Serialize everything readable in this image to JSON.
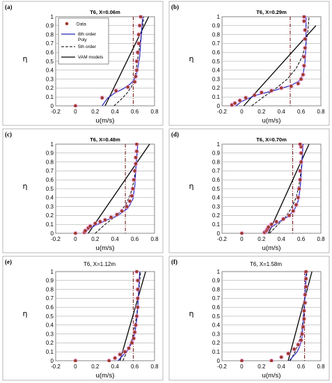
{
  "style": {
    "dots": "#a0392d",
    "dot_halo": "#f2a6ee",
    "order8": "#2626b8",
    "order5": "#000000",
    "vam": "#000000",
    "mean_line": "#7a1f1f"
  },
  "axis": {
    "xlabel": "u(m/s)",
    "ylabel": "η",
    "xticks": [
      "-0.2",
      "0",
      "0.2",
      "0.4",
      "0.6",
      "0.8"
    ],
    "yticks": [
      "0",
      "0.1",
      "0.2",
      "0.3",
      "0.4",
      "0.5",
      "0.6",
      "0.7",
      "0.8",
      "0.9",
      "1"
    ]
  },
  "legend": {
    "data": "Data",
    "order8_line1": "8th order",
    "order8_line2": "Poly",
    "order5": "5th order",
    "vam": "VAM models"
  },
  "chart_data": [
    {
      "type": "scatter",
      "letter": "(a)",
      "title": "T6, X=0.06m",
      "xlim": [
        -0.2,
        0.8
      ],
      "ylim": [
        0,
        1
      ],
      "grid": "horizontal",
      "data_points": [
        [
          0,
          0
        ],
        [
          0.27,
          0.09
        ],
        [
          0.41,
          0.17
        ],
        [
          0.53,
          0.21
        ],
        [
          0.6,
          0.27
        ],
        [
          0.61,
          0.33
        ],
        [
          0.62,
          0.4
        ],
        [
          0.62,
          0.5
        ],
        [
          0.63,
          0.6
        ],
        [
          0.64,
          0.7
        ],
        [
          0.64,
          0.8
        ],
        [
          0.65,
          0.9
        ],
        [
          0.66,
          1.0
        ]
      ],
      "poly8": [
        [
          0.27,
          0
        ],
        [
          0.32,
          0.08
        ],
        [
          0.39,
          0.14
        ],
        [
          0.48,
          0.19
        ],
        [
          0.56,
          0.25
        ],
        [
          0.61,
          0.32
        ],
        [
          0.63,
          0.42
        ],
        [
          0.65,
          0.55
        ],
        [
          0.66,
          0.7
        ],
        [
          0.67,
          0.85
        ],
        [
          0.68,
          1.0
        ]
      ],
      "poly5": [
        [
          0.39,
          0
        ],
        [
          0.46,
          0.07
        ],
        [
          0.52,
          0.14
        ],
        [
          0.57,
          0.22
        ],
        [
          0.6,
          0.32
        ],
        [
          0.62,
          0.45
        ],
        [
          0.64,
          0.6
        ],
        [
          0.66,
          0.75
        ],
        [
          0.68,
          0.88
        ],
        [
          0.69,
          1.0
        ]
      ],
      "vam": [
        [
          0.3,
          0
        ],
        [
          0.74,
          1.0
        ]
      ],
      "mean_u": 0.585
    },
    {
      "type": "scatter",
      "letter": "(b)",
      "title": "T6, X=0.29m",
      "xlim": [
        -0.2,
        0.8
      ],
      "ylim": [
        0,
        1
      ],
      "grid": "horizontal",
      "data_points": [
        [
          -0.1,
          0.01
        ],
        [
          -0.07,
          0.03
        ],
        [
          -0.02,
          0.06
        ],
        [
          0.04,
          0.09
        ],
        [
          0.13,
          0.12
        ],
        [
          0.2,
          0.15
        ],
        [
          0.3,
          0.17
        ],
        [
          0.4,
          0.2
        ],
        [
          0.5,
          0.22
        ],
        [
          0.57,
          0.25
        ],
        [
          0.6,
          0.3
        ],
        [
          0.62,
          0.35
        ],
        [
          0.63,
          0.45
        ],
        [
          0.63,
          0.55
        ],
        [
          0.64,
          0.65
        ],
        [
          0.64,
          0.75
        ],
        [
          0.64,
          0.85
        ],
        [
          0.63,
          0.95
        ],
        [
          0.63,
          1.0
        ]
      ],
      "poly8": [
        [
          -0.06,
          0
        ],
        [
          0.0,
          0.05
        ],
        [
          0.15,
          0.12
        ],
        [
          0.35,
          0.18
        ],
        [
          0.5,
          0.23
        ],
        [
          0.58,
          0.28
        ],
        [
          0.62,
          0.35
        ],
        [
          0.64,
          0.5
        ],
        [
          0.65,
          0.7
        ],
        [
          0.65,
          1.0
        ]
      ],
      "poly5": [
        [
          0.1,
          0
        ],
        [
          0.22,
          0.1
        ],
        [
          0.35,
          0.2
        ],
        [
          0.46,
          0.3
        ],
        [
          0.55,
          0.42
        ],
        [
          0.61,
          0.55
        ],
        [
          0.65,
          0.7
        ],
        [
          0.67,
          0.85
        ],
        [
          0.68,
          1.0
        ]
      ],
      "vam": [
        [
          0.02,
          0
        ],
        [
          0.75,
          0.9
        ]
      ],
      "mean_u": 0.49
    },
    {
      "type": "scatter",
      "letter": "(c)",
      "title": "T6, X=0.48m",
      "xlim": [
        -0.2,
        0.8
      ],
      "ylim": [
        0,
        1
      ],
      "grid": "horizontal",
      "data_points": [
        [
          0,
          0
        ],
        [
          0.09,
          0.01
        ],
        [
          0.1,
          0.03
        ],
        [
          0.13,
          0.06
        ],
        [
          0.15,
          0.08
        ],
        [
          0.2,
          0.11
        ],
        [
          0.25,
          0.13
        ],
        [
          0.3,
          0.15
        ],
        [
          0.36,
          0.18
        ],
        [
          0.42,
          0.21
        ],
        [
          0.47,
          0.25
        ],
        [
          0.52,
          0.3
        ],
        [
          0.55,
          0.36
        ],
        [
          0.57,
          0.42
        ],
        [
          0.58,
          0.5
        ],
        [
          0.59,
          0.6
        ],
        [
          0.6,
          0.7
        ],
        [
          0.61,
          0.78
        ],
        [
          0.61,
          0.85
        ],
        [
          0.62,
          0.92
        ],
        [
          0.62,
          1.0
        ]
      ],
      "poly8": [
        [
          0.08,
          0
        ],
        [
          0.15,
          0.06
        ],
        [
          0.28,
          0.13
        ],
        [
          0.43,
          0.2
        ],
        [
          0.53,
          0.28
        ],
        [
          0.58,
          0.38
        ],
        [
          0.6,
          0.52
        ],
        [
          0.61,
          0.7
        ],
        [
          0.62,
          0.85
        ],
        [
          0.63,
          1.0
        ]
      ],
      "poly5": [
        [
          0.2,
          0
        ],
        [
          0.3,
          0.1
        ],
        [
          0.42,
          0.2
        ],
        [
          0.51,
          0.32
        ],
        [
          0.56,
          0.45
        ],
        [
          0.59,
          0.58
        ],
        [
          0.61,
          0.72
        ],
        [
          0.62,
          0.85
        ],
        [
          0.63,
          1.0
        ]
      ],
      "vam": [
        [
          0.13,
          0
        ],
        [
          0.75,
          1.0
        ]
      ],
      "mean_u": 0.505
    },
    {
      "type": "scatter",
      "letter": "(d)",
      "title": "T6, X=0.70m",
      "xlim": [
        -0.2,
        0.8
      ],
      "ylim": [
        0,
        1
      ],
      "grid": "horizontal",
      "data_points": [
        [
          0,
          0
        ],
        [
          0.23,
          0.01
        ],
        [
          0.25,
          0.03
        ],
        [
          0.26,
          0.05
        ],
        [
          0.27,
          0.07
        ],
        [
          0.3,
          0.1
        ],
        [
          0.35,
          0.13
        ],
        [
          0.42,
          0.16
        ],
        [
          0.48,
          0.2
        ],
        [
          0.52,
          0.25
        ],
        [
          0.55,
          0.32
        ],
        [
          0.57,
          0.4
        ],
        [
          0.58,
          0.5
        ],
        [
          0.59,
          0.6
        ],
        [
          0.59,
          0.7
        ],
        [
          0.6,
          0.8
        ],
        [
          0.6,
          0.9
        ],
        [
          0.6,
          0.97
        ],
        [
          0.59,
          1.0
        ]
      ],
      "poly8": [
        [
          0.24,
          0
        ],
        [
          0.29,
          0.06
        ],
        [
          0.38,
          0.13
        ],
        [
          0.47,
          0.19
        ],
        [
          0.53,
          0.26
        ],
        [
          0.57,
          0.36
        ],
        [
          0.59,
          0.5
        ],
        [
          0.6,
          0.65
        ],
        [
          0.61,
          0.8
        ],
        [
          0.62,
          1.0
        ]
      ],
      "poly5": [
        [
          0.28,
          0
        ],
        [
          0.36,
          0.09
        ],
        [
          0.44,
          0.18
        ],
        [
          0.5,
          0.28
        ],
        [
          0.55,
          0.4
        ],
        [
          0.58,
          0.55
        ],
        [
          0.6,
          0.7
        ],
        [
          0.61,
          0.85
        ],
        [
          0.62,
          1.0
        ]
      ],
      "vam": [
        [
          0.27,
          0
        ],
        [
          0.68,
          1.0
        ]
      ],
      "mean_u": 0.515
    },
    {
      "type": "scatter",
      "letter": "(e)",
      "title": "T6, X=1.12m",
      "xlim": [
        -0.2,
        0.8
      ],
      "ylim": [
        0,
        1
      ],
      "grid": "horizontal",
      "data_points": [
        [
          0,
          0
        ],
        [
          0.34,
          0.0
        ],
        [
          0.4,
          0.03
        ],
        [
          0.45,
          0.07
        ],
        [
          0.5,
          0.1
        ],
        [
          0.54,
          0.14
        ],
        [
          0.57,
          0.2
        ],
        [
          0.59,
          0.25
        ],
        [
          0.6,
          0.32
        ],
        [
          0.61,
          0.4
        ],
        [
          0.62,
          0.5
        ],
        [
          0.63,
          0.6
        ],
        [
          0.63,
          0.7
        ],
        [
          0.63,
          0.8
        ],
        [
          0.63,
          0.9
        ],
        [
          0.62,
          1.0
        ]
      ],
      "poly8": [
        [
          0.43,
          0
        ],
        [
          0.48,
          0.06
        ],
        [
          0.53,
          0.12
        ],
        [
          0.57,
          0.2
        ],
        [
          0.6,
          0.3
        ],
        [
          0.62,
          0.45
        ],
        [
          0.63,
          0.6
        ],
        [
          0.64,
          0.8
        ],
        [
          0.65,
          1.0
        ]
      ],
      "poly5": [
        [
          0.48,
          0
        ],
        [
          0.52,
          0.1
        ],
        [
          0.56,
          0.2
        ],
        [
          0.59,
          0.32
        ],
        [
          0.61,
          0.45
        ],
        [
          0.63,
          0.6
        ],
        [
          0.64,
          0.75
        ],
        [
          0.65,
          0.9
        ],
        [
          0.66,
          1.0
        ]
      ],
      "vam": [
        [
          0.45,
          0
        ],
        [
          0.71,
          1.0
        ]
      ],
      "mean_u": 0.585
    },
    {
      "type": "scatter",
      "letter": "(f)",
      "title": "T6, X=1.58m",
      "xlim": [
        -0.2,
        0.8
      ],
      "ylim": [
        0,
        1
      ],
      "grid": "horizontal",
      "data_points": [
        [
          0,
          0
        ],
        [
          0.3,
          0.0
        ],
        [
          0.4,
          0.04
        ],
        [
          0.47,
          0.08
        ],
        [
          0.53,
          0.13
        ],
        [
          0.57,
          0.18
        ],
        [
          0.6,
          0.23
        ],
        [
          0.61,
          0.3
        ],
        [
          0.62,
          0.38
        ],
        [
          0.63,
          0.47
        ],
        [
          0.63,
          0.56
        ],
        [
          0.64,
          0.65
        ],
        [
          0.64,
          0.74
        ],
        [
          0.65,
          0.83
        ],
        [
          0.65,
          0.92
        ],
        [
          0.65,
          1.0
        ]
      ],
      "poly8": [
        [
          0.48,
          0
        ],
        [
          0.52,
          0.05
        ],
        [
          0.56,
          0.1
        ],
        [
          0.59,
          0.17
        ],
        [
          0.61,
          0.27
        ],
        [
          0.62,
          0.4
        ],
        [
          0.63,
          0.55
        ],
        [
          0.64,
          0.75
        ],
        [
          0.65,
          1.0
        ]
      ],
      "poly5": [
        [
          0.49,
          0
        ],
        [
          0.53,
          0.08
        ],
        [
          0.57,
          0.18
        ],
        [
          0.6,
          0.3
        ],
        [
          0.62,
          0.45
        ],
        [
          0.63,
          0.6
        ],
        [
          0.64,
          0.75
        ],
        [
          0.65,
          0.9
        ],
        [
          0.66,
          1.0
        ]
      ],
      "vam": [
        [
          0.47,
          0
        ],
        [
          0.71,
          1.0
        ]
      ],
      "mean_u": 0.635
    }
  ]
}
